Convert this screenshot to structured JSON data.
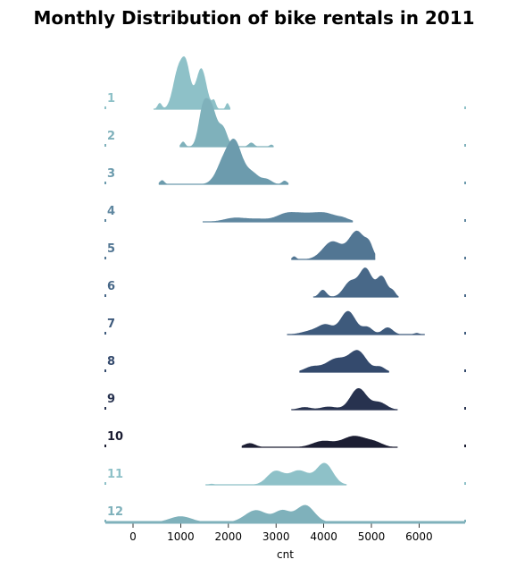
{
  "chart_data": {
    "type": "area",
    "subtype": "ridgeline-kde",
    "title": "Monthly Distribution of bike rentals in 2011",
    "xlabel": "cnt",
    "ylabel": "",
    "xlim": [
      -600,
      6950
    ],
    "xticks": [
      0,
      1000,
      2000,
      3000,
      4000,
      5000,
      6000
    ],
    "grid": false,
    "categories": [
      "1",
      "2",
      "3",
      "4",
      "5",
      "6",
      "7",
      "8",
      "9",
      "10",
      "11",
      "12"
    ],
    "colors": [
      "#8ec1c8",
      "#7fb1bb",
      "#6c9bad",
      "#5f87a0",
      "#527693",
      "#486888",
      "#3e5a7c",
      "#344a6d",
      "#27324f",
      "#1c1e33",
      "#8ec1c8",
      "#7fb1bb"
    ],
    "series": [
      {
        "label": "1",
        "range": [
          430,
          2040
        ],
        "peaks": [
          [
            560,
            0.12,
            45
          ],
          [
            950,
            0.75,
            110
          ],
          [
            1120,
            0.72,
            90
          ],
          [
            1430,
            0.8,
            110
          ],
          [
            1700,
            0.15,
            40
          ],
          [
            1980,
            0.12,
            35
          ]
        ]
      },
      {
        "label": "2",
        "range": [
          980,
          2950
        ],
        "peaks": [
          [
            1050,
            0.1,
            45
          ],
          [
            1460,
            0.65,
            90
          ],
          [
            1640,
            0.78,
            110
          ],
          [
            1890,
            0.35,
            90
          ],
          [
            2480,
            0.08,
            60
          ],
          [
            2900,
            0.04,
            40
          ]
        ]
      },
      {
        "label": "3",
        "range": [
          540,
          3260
        ],
        "peaks": [
          [
            610,
            0.08,
            50
          ],
          [
            1950,
            0.55,
            170
          ],
          [
            2160,
            0.55,
            130
          ],
          [
            2460,
            0.25,
            170
          ],
          [
            2820,
            0.08,
            100
          ],
          [
            3180,
            0.07,
            55
          ]
        ]
      },
      {
        "label": "4",
        "range": [
          1460,
          4610
        ],
        "peaks": [
          [
            2150,
            0.08,
            240
          ],
          [
            2640,
            0.05,
            200
          ],
          [
            3220,
            0.16,
            220
          ],
          [
            3600,
            0.11,
            210
          ],
          [
            4020,
            0.17,
            240
          ],
          [
            4420,
            0.05,
            130
          ]
        ]
      },
      {
        "label": "5",
        "range": [
          3320,
          5080
        ],
        "peaks": [
          [
            3380,
            0.06,
            45
          ],
          [
            4180,
            0.35,
            200
          ],
          [
            4700,
            0.55,
            170
          ],
          [
            4960,
            0.2,
            80
          ]
        ]
      },
      {
        "label": "6",
        "range": [
          3780,
          5570
        ],
        "peaks": [
          [
            3980,
            0.14,
            75
          ],
          [
            4560,
            0.3,
            140
          ],
          [
            4880,
            0.55,
            130
          ],
          [
            5220,
            0.4,
            110
          ],
          [
            5450,
            0.1,
            60
          ]
        ]
      },
      {
        "label": "7",
        "range": [
          3230,
          6120
        ],
        "peaks": [
          [
            3780,
            0.08,
            220
          ],
          [
            4050,
            0.16,
            150
          ],
          [
            4510,
            0.46,
            160
          ],
          [
            4920,
            0.14,
            110
          ],
          [
            5340,
            0.14,
            110
          ],
          [
            5950,
            0.03,
            60
          ]
        ]
      },
      {
        "label": "8",
        "range": [
          3490,
          5370
        ],
        "peaks": [
          [
            3750,
            0.1,
            160
          ],
          [
            4260,
            0.26,
            220
          ],
          [
            4720,
            0.4,
            180
          ],
          [
            5180,
            0.1,
            110
          ]
        ]
      },
      {
        "label": "9",
        "range": [
          3320,
          5550
        ],
        "peaks": [
          [
            3600,
            0.05,
            130
          ],
          [
            4100,
            0.06,
            160
          ],
          [
            4730,
            0.42,
            170
          ],
          [
            5170,
            0.14,
            150
          ]
        ]
      },
      {
        "label": "10",
        "range": [
          2280,
          5550
        ],
        "peaks": [
          [
            2450,
            0.08,
            120
          ],
          [
            3980,
            0.12,
            220
          ],
          [
            4640,
            0.22,
            250
          ],
          [
            5080,
            0.08,
            170
          ]
        ]
      },
      {
        "label": "11",
        "range": [
          1520,
          4480
        ],
        "peaks": [
          [
            1650,
            0.02,
            55
          ],
          [
            2980,
            0.26,
            170
          ],
          [
            3480,
            0.28,
            210
          ],
          [
            4020,
            0.42,
            170
          ]
        ]
      },
      {
        "label": "12",
        "range": [
          -100,
          6900
        ],
        "peaks": [
          [
            1000,
            0.12,
            230
          ],
          [
            2580,
            0.24,
            230
          ],
          [
            3130,
            0.22,
            160
          ],
          [
            3610,
            0.34,
            190
          ]
        ]
      }
    ]
  }
}
